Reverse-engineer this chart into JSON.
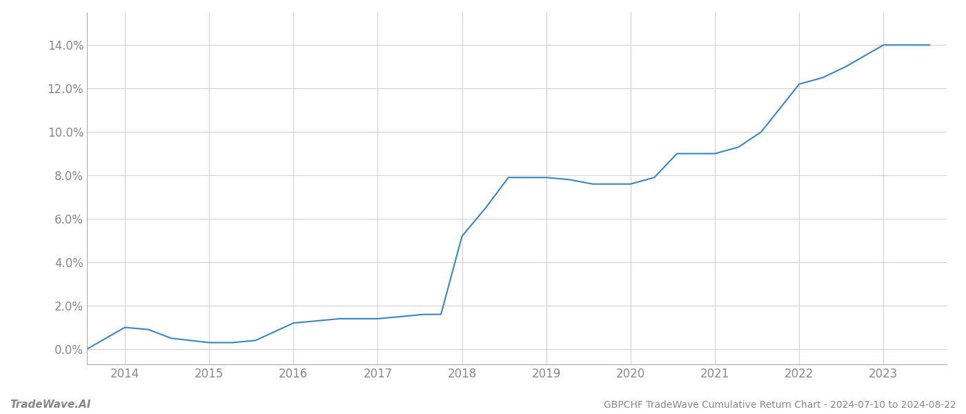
{
  "x_values": [
    2013.55,
    2014.0,
    2014.28,
    2014.55,
    2015.0,
    2015.28,
    2015.55,
    2016.0,
    2016.28,
    2016.55,
    2017.0,
    2017.28,
    2017.55,
    2017.75,
    2018.0,
    2018.28,
    2018.55,
    2019.0,
    2019.28,
    2019.55,
    2020.0,
    2020.28,
    2020.55,
    2021.0,
    2021.28,
    2021.55,
    2022.0,
    2022.28,
    2022.55,
    2023.0,
    2023.55
  ],
  "y_values": [
    0.0,
    0.01,
    0.009,
    0.005,
    0.003,
    0.003,
    0.004,
    0.012,
    0.013,
    0.014,
    0.014,
    0.015,
    0.016,
    0.016,
    0.052,
    0.065,
    0.079,
    0.079,
    0.078,
    0.076,
    0.076,
    0.079,
    0.09,
    0.09,
    0.093,
    0.1,
    0.122,
    0.125,
    0.13,
    0.14,
    0.14
  ],
  "line_color": "#3a85c0",
  "background_color": "#ffffff",
  "grid_color": "#d0d0d0",
  "title_text": "GBPCHF TradeWave Cumulative Return Chart - 2024-07-10 to 2024-08-22",
  "watermark_text": "TradeWave.AI",
  "xlim": [
    2013.55,
    2023.75
  ],
  "ylim": [
    -0.007,
    0.155
  ],
  "yticks": [
    0.0,
    0.02,
    0.04,
    0.06,
    0.08,
    0.1,
    0.12,
    0.14
  ],
  "xticks": [
    2014,
    2015,
    2016,
    2017,
    2018,
    2019,
    2020,
    2021,
    2022,
    2023
  ],
  "axis_label_color": "#888888",
  "bottom_text_color": "#888888",
  "title_color": "#888888",
  "line_width": 1.5,
  "spine_color": "#aaaaaa"
}
